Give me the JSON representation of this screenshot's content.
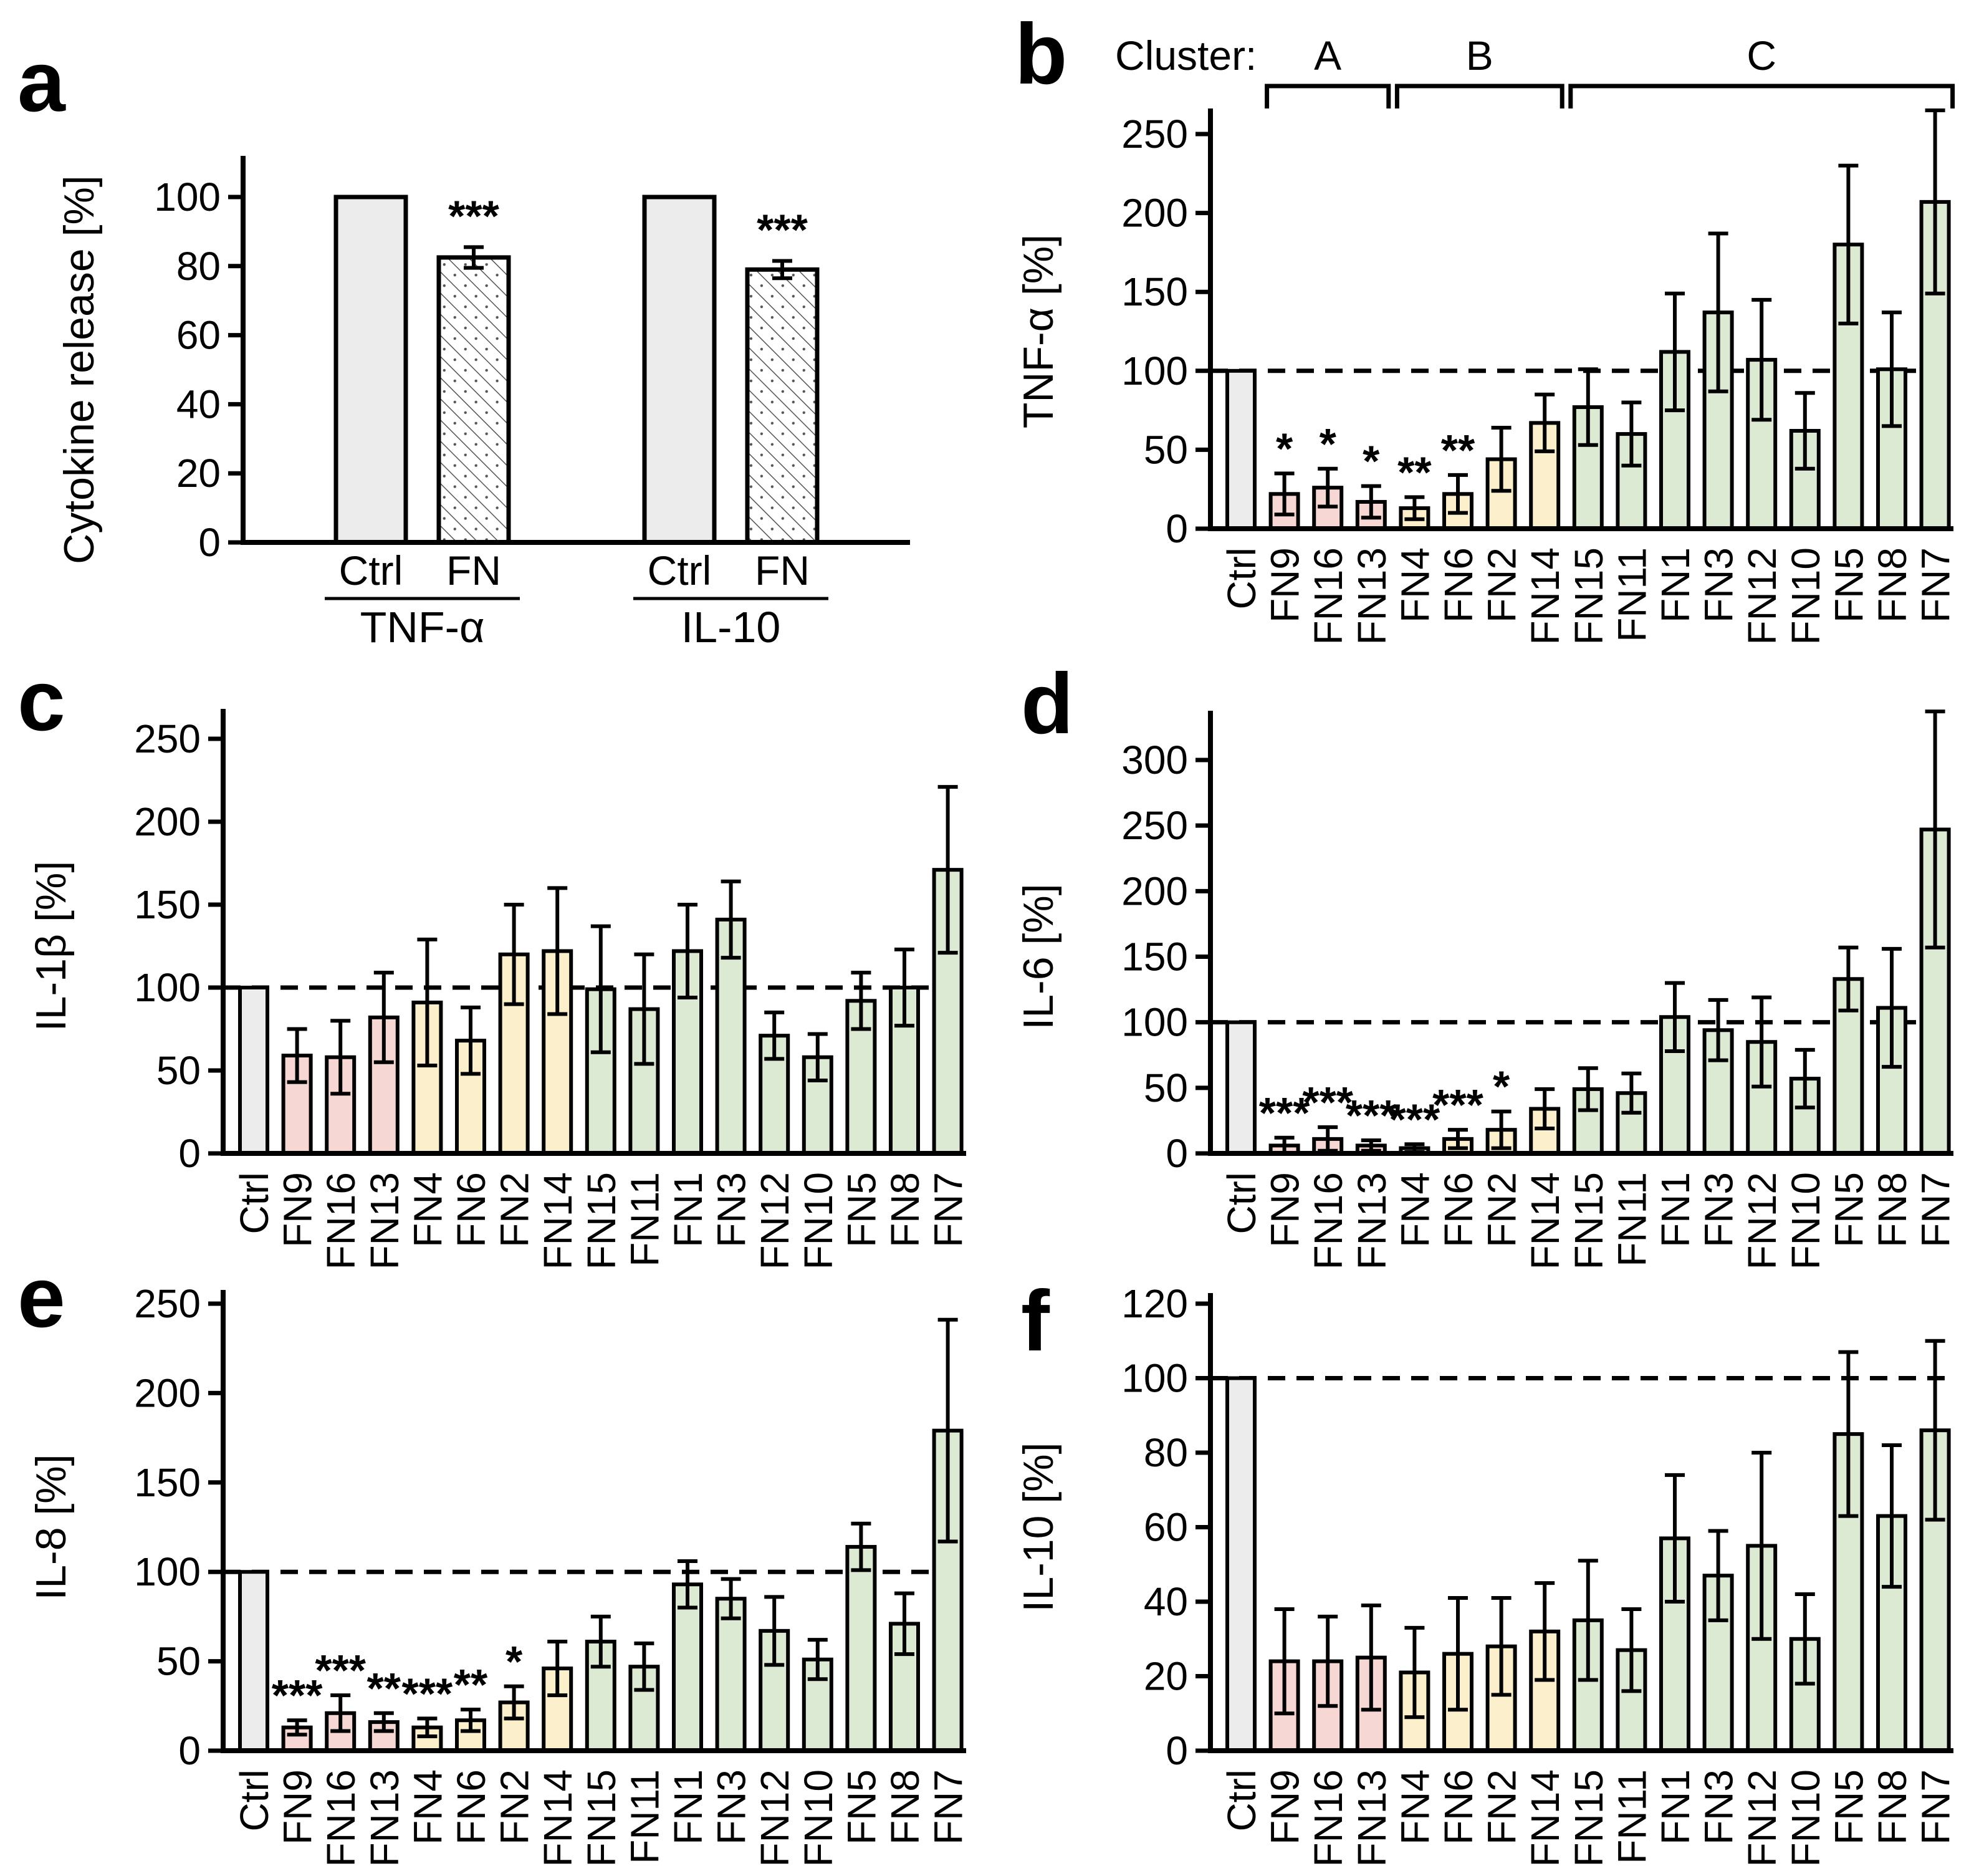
{
  "style": {
    "background": "#ffffff",
    "bar_outline": "#000000",
    "axis_color": "#000000",
    "hatch_color": "#555555",
    "palette": {
      "ctrl": "#ececec",
      "A": "#f6d7d3",
      "B": "#fbf0cb",
      "C": "#dcead3"
    }
  },
  "categories": [
    "Ctrl",
    "FN9",
    "FN16",
    "FN13",
    "FN4",
    "FN6",
    "FN2",
    "FN14",
    "FN15",
    "FN11",
    "FN1",
    "FN3",
    "FN12",
    "FN10",
    "FN5",
    "FN8",
    "FN7"
  ],
  "clusters": [
    "ctrl",
    "A",
    "A",
    "A",
    "B",
    "B",
    "B",
    "B",
    "C",
    "C",
    "C",
    "C",
    "C",
    "C",
    "C",
    "C",
    "C"
  ],
  "chart_data": [
    {
      "id": "a",
      "letter": "a",
      "type": "grouped-bar",
      "ylabel": "Cytokine release [%]",
      "yticks": [
        0,
        20,
        40,
        60,
        80,
        100
      ],
      "groups": [
        {
          "label": "TNF-α",
          "bars": [
            {
              "label": "Ctrl",
              "value": 100,
              "err": 0,
              "sig": "",
              "fill": "ctrl"
            },
            {
              "label": "FN",
              "value": 82.5,
              "err": 3,
              "sig": "***",
              "fill": "hatch"
            }
          ]
        },
        {
          "label": "IL-10",
          "bars": [
            {
              "label": "Ctrl",
              "value": 100,
              "err": 0,
              "sig": "",
              "fill": "ctrl"
            },
            {
              "label": "FN",
              "value": 79,
              "err": 2.5,
              "sig": "***",
              "fill": "hatch"
            }
          ]
        }
      ]
    },
    {
      "id": "b",
      "letter": "b",
      "type": "bar",
      "ylabel": "TNF-α [%]",
      "yticks": [
        0,
        50,
        100,
        150,
        200,
        250
      ],
      "reference_line": 100,
      "values": [
        100,
        22,
        26,
        17,
        13,
        22,
        44,
        67,
        77,
        60,
        112,
        137,
        107,
        62,
        180,
        101,
        207
      ],
      "errors": [
        0,
        13,
        12,
        10,
        7,
        12,
        20,
        18,
        24,
        20,
        37,
        50,
        38,
        24,
        50,
        36,
        58
      ],
      "sig": [
        "",
        "*",
        "*",
        "*",
        "**",
        "**",
        "",
        "",
        "",
        "",
        "",
        "",
        "",
        "",
        "",
        "",
        ""
      ],
      "cluster_header": {
        "label": "Cluster:",
        "brackets": [
          {
            "name": "A",
            "from": 1,
            "to": 3
          },
          {
            "name": "B",
            "from": 4,
            "to": 7
          },
          {
            "name": "C",
            "from": 8,
            "to": 16
          }
        ]
      }
    },
    {
      "id": "c",
      "letter": "c",
      "type": "bar",
      "ylabel": "IL-1β [%]",
      "yticks": [
        0,
        50,
        100,
        150,
        200,
        250
      ],
      "reference_line": 100,
      "values": [
        100,
        59,
        58,
        82,
        91,
        68,
        120,
        122,
        99,
        87,
        122,
        141,
        71,
        58,
        92,
        100,
        171
      ],
      "errors": [
        0,
        16,
        22,
        27,
        38,
        20,
        30,
        38,
        38,
        33,
        28,
        23,
        14,
        14,
        17,
        23,
        50
      ],
      "sig": [
        "",
        "",
        "",
        "",
        "",
        "",
        "",
        "",
        "",
        "",
        "",
        "",
        "",
        "",
        "",
        "",
        ""
      ]
    },
    {
      "id": "d",
      "letter": "d",
      "type": "bar",
      "ylabel": "IL-6 [%]",
      "yticks": [
        0,
        50,
        100,
        150,
        200,
        250,
        300
      ],
      "reference_line": 100,
      "values": [
        100,
        6,
        11,
        6,
        4,
        11,
        18,
        34,
        49,
        46,
        104,
        94,
        85,
        57,
        133,
        111,
        247
      ],
      "errors": [
        0,
        6,
        9,
        4,
        3,
        7,
        14,
        15,
        16,
        15,
        26,
        23,
        34,
        22,
        24,
        45,
        90
      ],
      "sig": [
        "",
        "***",
        "***",
        "***",
        "***",
        "***",
        "*",
        "",
        "",
        "",
        "",
        "",
        "",
        "",
        "",
        "",
        ""
      ]
    },
    {
      "id": "e",
      "letter": "e",
      "type": "bar",
      "ylabel": "IL-8 [%]",
      "yticks": [
        0,
        50,
        100,
        150,
        200,
        250
      ],
      "reference_line": 100,
      "values": [
        100,
        13,
        21,
        16,
        13,
        17,
        27,
        46,
        61,
        47,
        93,
        85,
        67,
        51,
        114,
        71,
        179
      ],
      "errors": [
        0,
        4,
        10,
        5,
        5,
        6,
        9,
        15,
        14,
        13,
        13,
        11,
        19,
        11,
        13,
        17,
        62
      ],
      "sig": [
        "",
        "***",
        "***",
        "**",
        "***",
        "**",
        "*",
        "",
        "",
        "",
        "",
        "",
        "",
        "",
        "",
        "",
        ""
      ]
    },
    {
      "id": "f",
      "letter": "f",
      "type": "bar",
      "ylabel": "IL-10 [%]",
      "yticks": [
        0,
        20,
        40,
        60,
        80,
        100,
        120
      ],
      "reference_line": 100,
      "values": [
        100,
        24,
        24,
        25,
        21,
        26,
        28,
        32,
        35,
        27,
        57,
        47,
        55,
        30,
        85,
        63,
        86
      ],
      "errors": [
        0,
        14,
        12,
        14,
        12,
        15,
        13,
        13,
        16,
        11,
        17,
        12,
        25,
        12,
        22,
        19,
        24
      ],
      "sig": [
        "",
        "",
        "",
        "",
        "",
        "",
        "",
        "",
        "",
        "",
        "",
        "",
        "",
        "",
        "",
        "",
        ""
      ]
    }
  ]
}
